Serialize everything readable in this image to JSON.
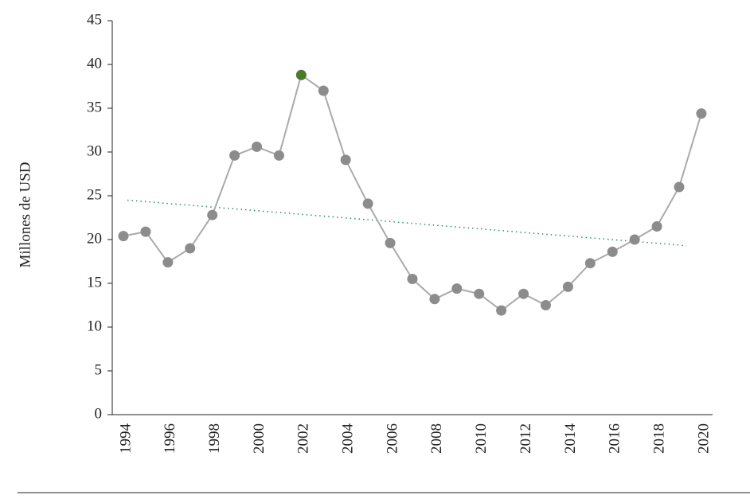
{
  "chart_data": {
    "type": "line",
    "y_label": "Millones de USD",
    "categories": [
      "1994",
      null,
      "1996",
      null,
      "1998",
      null,
      "2000",
      null,
      "2002",
      null,
      "2004",
      null,
      "2006",
      null,
      "2008",
      null,
      "2010",
      null,
      "2012",
      null,
      "2014",
      null,
      "2016",
      null,
      "2018",
      null,
      "2020"
    ],
    "series": [
      {
        "color": "#8c8c8c",
        "values": [
          20.4,
          20.9,
          17.4,
          19.0,
          22.8,
          29.6,
          30.6,
          29.6,
          38.8,
          37.0,
          29.1,
          24.1,
          19.6,
          15.5,
          13.2,
          14.4,
          13.8,
          11.9,
          13.8,
          12.5,
          14.6,
          17.3,
          18.6,
          20.0,
          21.5,
          26.0,
          34.4
        ]
      }
    ],
    "highlight": {
      "index": 8,
      "color": "#4a7a2a"
    },
    "trend": {
      "color": "#2e8b7a",
      "values": [
        24.5,
        19.3
      ]
    },
    "ylim": [
      0,
      45
    ],
    "yticks": [
      0,
      5,
      10,
      15,
      20,
      25,
      30,
      35,
      40,
      45
    ]
  }
}
